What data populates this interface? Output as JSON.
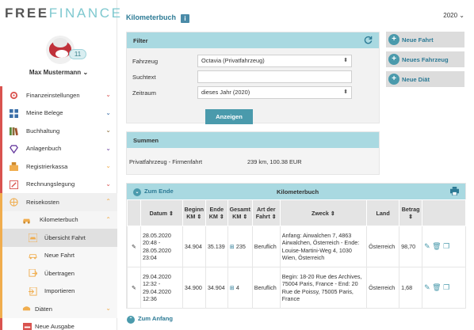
{
  "logo": {
    "part1": "FREE",
    "part2": "FINANCE"
  },
  "user": {
    "name": "Max Mustermann",
    "chevron": "⌄",
    "badge": "11"
  },
  "nav": [
    {
      "label": "Finanzeinstellungen",
      "icon": "gear-icon",
      "color": "#d9534f"
    },
    {
      "label": "Meine Belege",
      "icon": "grid-icon",
      "color": "#3a6fa8"
    },
    {
      "label": "Buchhaltung",
      "icon": "books-icon",
      "color": "#8a6d3b"
    },
    {
      "label": "Anlagenbuch",
      "icon": "diamond-icon",
      "color": "#6a3fa0"
    },
    {
      "label": "Registrierkassa",
      "icon": "register-icon",
      "color": "#f0ad4e"
    },
    {
      "label": "Rechnungslegung",
      "icon": "pencil-icon",
      "color": "#d9534f"
    },
    {
      "label": "Reisekosten",
      "icon": "globe-icon",
      "color": "#f0ad4e"
    },
    {
      "label": "Kilometerbuch",
      "icon": "car-icon",
      "color": "#f0ad4e"
    },
    {
      "label": "Übersicht Fahrt",
      "icon": "car-list-icon",
      "color": "#f0ad4e"
    },
    {
      "label": "Neue Fahrt",
      "icon": "car-plus-icon",
      "color": "#f0ad4e"
    },
    {
      "label": "Übertragen",
      "icon": "transfer-icon",
      "color": "#f0ad4e"
    },
    {
      "label": "Importieren",
      "icon": "import-icon",
      "color": "#f0ad4e"
    },
    {
      "label": "Diäten",
      "icon": "food-icon",
      "color": "#f0ad4e"
    },
    {
      "label": "Neue Ausgabe",
      "icon": "minus-icon",
      "color": "#d9534f"
    }
  ],
  "page": {
    "title": "Kilometerbuch",
    "year": "2020"
  },
  "filter": {
    "header": "Filter",
    "fahrzeug_label": "Fahrzeug",
    "fahrzeug_value": "Octavia (Privatfahrzeug)",
    "suchtext_label": "Suchtext",
    "suchtext_value": "",
    "zeitraum_label": "Zeitraum",
    "zeitraum_value": "dieses Jahr (2020)",
    "button": "Anzeigen"
  },
  "actions": {
    "neue_fahrt": "Neue Fahrt",
    "neues_fahrzeug": "Neues Fahrzeug",
    "neue_diaet": "Neue Diät"
  },
  "summen": {
    "header": "Summen",
    "label": "Privatfahrzeug - Firmenfahrt",
    "value": "239 km, 100.38 EUR"
  },
  "kilometerbuch": {
    "header": "Kilometerbuch",
    "zum_ende": "Zum Ende",
    "zum_anfang": "Zum Anfang",
    "columns": [
      "Datum",
      "Beginn KM",
      "Ende KM",
      "Gesamt KM",
      "Art der Fahrt",
      "Zweck",
      "Land",
      "Betrag"
    ],
    "rows": [
      {
        "datum": "28.05.2020 20:48 - 28.05.2020 23:04",
        "beginn": "34.904",
        "ende": "35.139",
        "gesamt": "235",
        "art": "Beruflich",
        "zweck": "Anfang: Airwalchen 7, 4863 Airwalchen, Österreich - Ende: Louise-Martini-Weg 4, 1030 Wien, Österreich",
        "land": "Österreich",
        "betrag": "98,70"
      },
      {
        "datum": "29.04.2020 12:32 - 29.04.2020 12:36",
        "beginn": "34.900",
        "ende": "34.904",
        "gesamt": "4",
        "art": "Beruflich",
        "zweck": "Begin: 18-20 Rue des Archives, 75004 Paris, France - End: 20 Rue de Poissy, 75005 Paris, France",
        "land": "Österreich",
        "betrag": "1,68"
      }
    ]
  }
}
